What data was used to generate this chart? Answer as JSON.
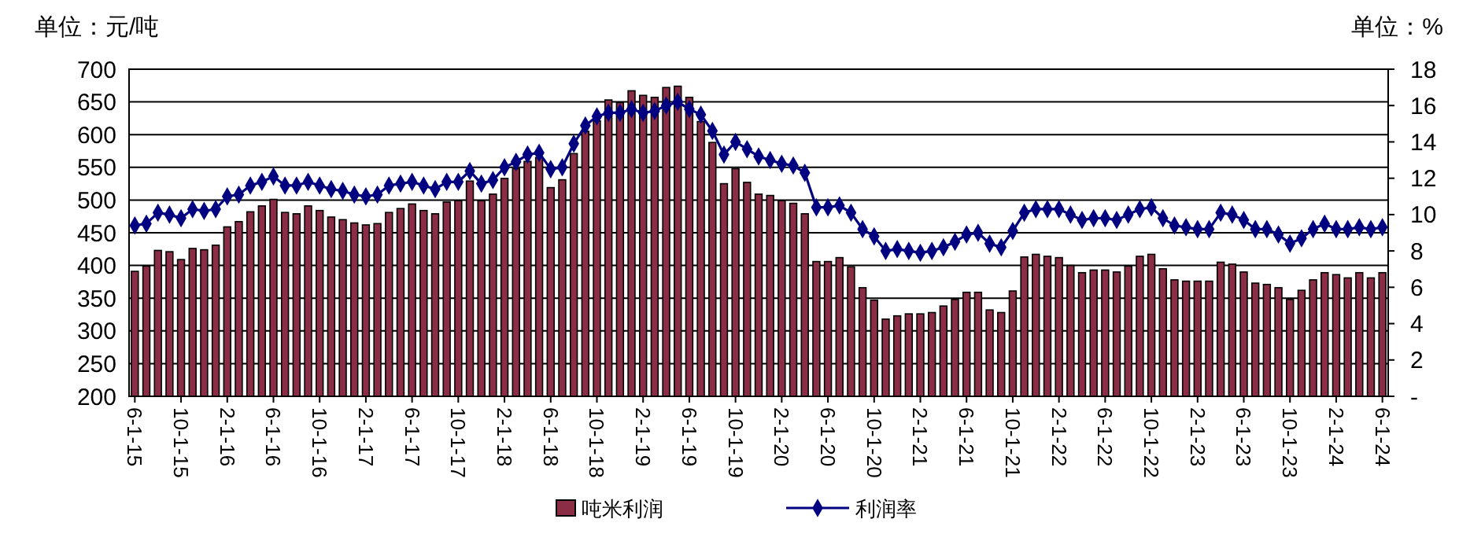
{
  "chart_data": {
    "type": "bar",
    "ylabel": "单位：元/吨",
    "y2label": "单位：%",
    "categories": [
      "6-1-15",
      null,
      null,
      null,
      "10-1-15",
      null,
      null,
      null,
      "2-1-16",
      null,
      null,
      null,
      "6-1-16",
      null,
      null,
      null,
      "10-1-16",
      null,
      null,
      null,
      "2-1-17",
      null,
      null,
      null,
      "6-1-17",
      null,
      null,
      null,
      "10-1-17",
      null,
      null,
      null,
      "2-1-18",
      null,
      null,
      null,
      "6-1-18",
      null,
      null,
      null,
      "10-1-18",
      null,
      null,
      null,
      "2-1-19",
      null,
      null,
      null,
      "6-1-19",
      null,
      null,
      null,
      "10-1-19",
      null,
      null,
      null,
      "2-1-20",
      null,
      null,
      null,
      "6-1-20",
      null,
      null,
      null,
      "10-1-20",
      null,
      null,
      null,
      "2-1-21",
      null,
      null,
      null,
      "6-1-21",
      null,
      null,
      null,
      "10-1-21",
      null,
      null,
      null,
      "2-1-22",
      null,
      null,
      null,
      "6-1-22",
      null,
      null,
      null,
      "10-1-22",
      null,
      null,
      null,
      "2-1-23",
      null,
      null,
      null,
      "6-1-23",
      null,
      null,
      null,
      "10-1-23",
      null,
      null,
      null,
      "2-1-24",
      null,
      null,
      null,
      "6-1-24"
    ],
    "series": [
      {
        "name": "吨米利润",
        "color": "#8c2d46",
        "values": [
          391,
          399,
          423,
          421,
          409,
          426,
          424,
          431,
          459,
          467,
          482,
          491,
          501,
          481,
          479,
          491,
          484,
          474,
          470,
          465,
          462,
          464,
          481,
          487,
          494,
          484,
          479,
          497,
          499,
          529,
          499,
          509,
          533,
          548,
          559,
          565,
          519,
          531,
          571,
          605,
          621,
          653,
          649,
          667,
          660,
          657,
          672,
          674,
          657,
          620,
          588,
          525,
          548,
          527,
          509,
          507,
          499,
          495,
          479,
          406,
          406,
          412,
          398,
          366,
          347,
          318,
          323,
          326,
          326,
          328,
          338,
          348,
          359,
          359,
          332,
          328,
          361,
          413,
          417,
          414,
          412,
          400,
          389,
          393,
          393,
          390,
          399,
          414,
          417,
          395,
          378,
          376,
          376,
          376,
          405,
          402,
          390,
          373,
          371,
          366,
          348,
          362,
          378,
          389,
          386,
          381,
          389,
          381,
          389
        ]
      },
      {
        "name": "利润率",
        "type": "line",
        "axis": "y2",
        "color": "#000080",
        "marker": "diamond",
        "line_style": "solid",
        "values": [
          9.4,
          9.5,
          10.1,
          10.0,
          9.8,
          10.3,
          10.2,
          10.3,
          11.0,
          11.1,
          11.6,
          11.8,
          12.1,
          11.6,
          11.6,
          11.8,
          11.6,
          11.4,
          11.3,
          11.1,
          11.0,
          11.1,
          11.6,
          11.7,
          11.8,
          11.6,
          11.4,
          11.8,
          11.8,
          12.4,
          11.7,
          11.9,
          12.6,
          12.9,
          13.3,
          13.4,
          12.5,
          12.6,
          13.9,
          14.9,
          15.4,
          15.6,
          15.6,
          15.8,
          15.6,
          15.7,
          16.0,
          16.2,
          15.8,
          15.5,
          14.6,
          13.3,
          14.0,
          13.6,
          13.2,
          13.0,
          12.8,
          12.7,
          12.3,
          10.4,
          10.4,
          10.5,
          10.1,
          9.2,
          8.8,
          8.0,
          8.1,
          8.0,
          7.9,
          8.0,
          8.2,
          8.5,
          8.9,
          9.0,
          8.4,
          8.2,
          9.1,
          10.1,
          10.3,
          10.3,
          10.3,
          10.0,
          9.7,
          9.8,
          9.8,
          9.7,
          10.0,
          10.3,
          10.4,
          9.8,
          9.4,
          9.3,
          9.2,
          9.2,
          10.1,
          10.0,
          9.7,
          9.2,
          9.2,
          8.9,
          8.4,
          8.7,
          9.2,
          9.5,
          9.2,
          9.2,
          9.3,
          9.2,
          9.3
        ]
      }
    ],
    "ylim": [
      200,
      700
    ],
    "yticks": [
      200,
      250,
      300,
      350,
      400,
      450,
      500,
      550,
      600,
      650,
      700
    ],
    "y2lim": [
      0,
      18
    ],
    "y2ticks": [
      {
        "value": 0,
        "label": "-"
      },
      2,
      4,
      6,
      8,
      10,
      12,
      14,
      16,
      18
    ],
    "grid": "y",
    "legend": "bottom"
  }
}
